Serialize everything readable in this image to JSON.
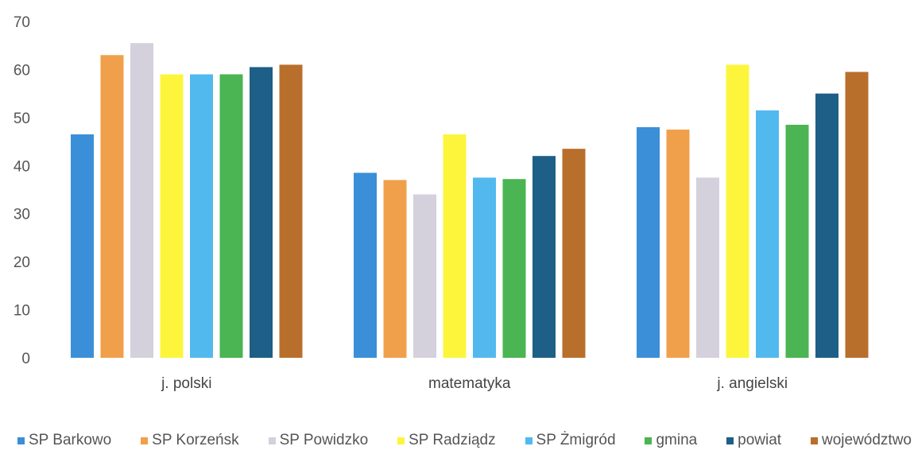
{
  "chart_data": {
    "type": "bar",
    "title": "",
    "xlabel": "",
    "ylabel": "",
    "ylim": [
      0,
      70
    ],
    "yticks": [
      "0",
      "10",
      "20",
      "30",
      "40",
      "50",
      "60",
      "70"
    ],
    "grid": false,
    "legend_position": "bottom",
    "categories": [
      "j. polski",
      "matematyka",
      "j. angielski"
    ],
    "series": [
      {
        "name": "SP Barkowo",
        "color": "#3a8fd8",
        "values": [
          46.5,
          38.5,
          48
        ]
      },
      {
        "name": "SP Korzeńsk",
        "color": "#f0a04a",
        "values": [
          63,
          37,
          47.5
        ]
      },
      {
        "name": "SP Powidzko",
        "color": "#d4d0dc",
        "values": [
          65.5,
          34,
          37.5
        ]
      },
      {
        "name": "SP Radziądz",
        "color": "#fcf53c",
        "values": [
          59,
          46.5,
          61
        ]
      },
      {
        "name": "SP Żmigród",
        "color": "#52b9ee",
        "values": [
          59,
          37.5,
          51.5
        ]
      },
      {
        "name": "gmina",
        "color": "#4ab552",
        "values": [
          59,
          37.2,
          48.5
        ]
      },
      {
        "name": "powiat",
        "color": "#1d5f86",
        "values": [
          60.5,
          42,
          55
        ]
      },
      {
        "name": "województwo",
        "color": "#b96f2c",
        "values": [
          61,
          43.5,
          59.5
        ]
      }
    ]
  }
}
